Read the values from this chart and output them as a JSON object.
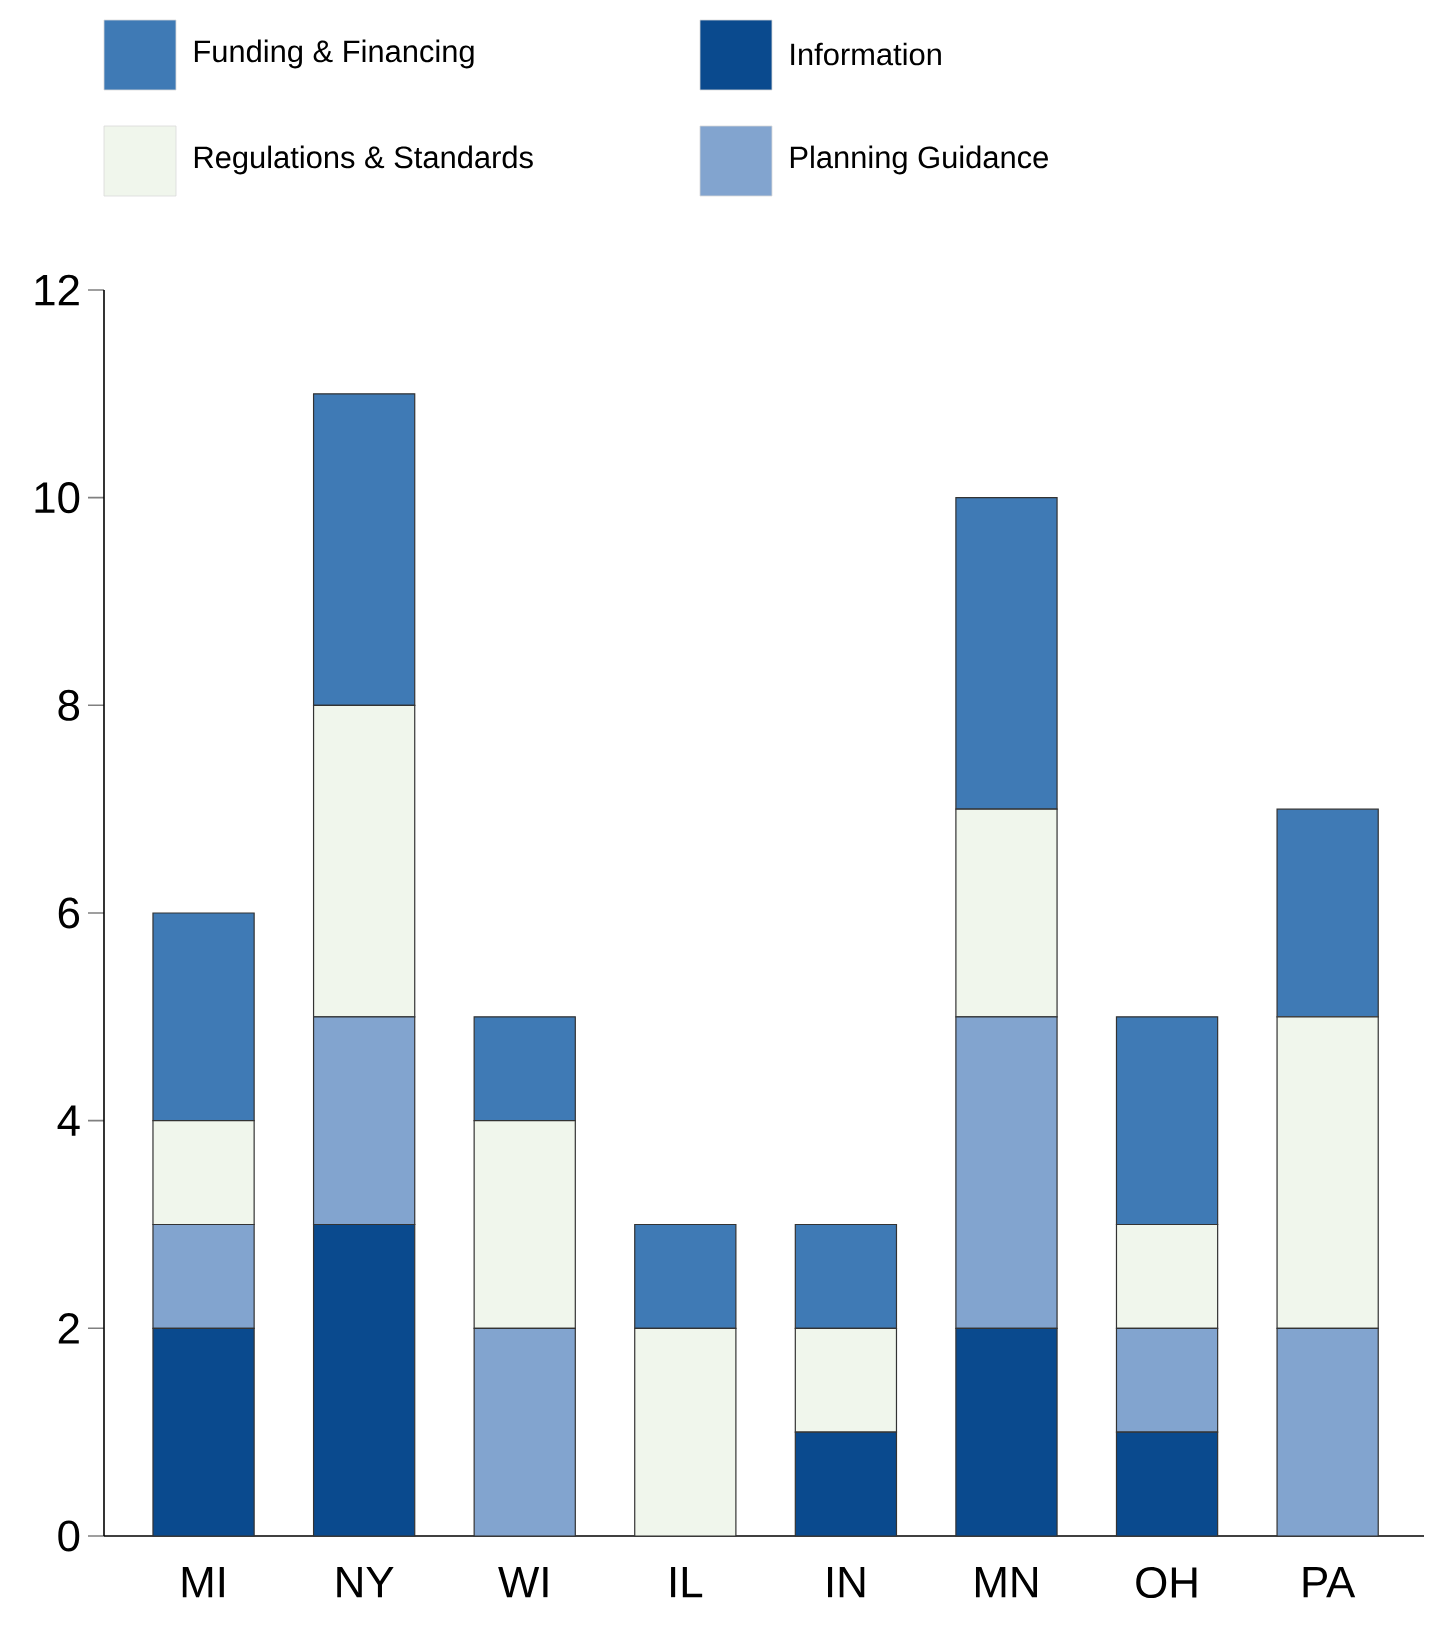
{
  "chart_data": {
    "type": "bar",
    "stacked": true,
    "categories": [
      "MI",
      "NY",
      "WI",
      "IL",
      "IN",
      "MN",
      "OH",
      "PA"
    ],
    "series": [
      {
        "name": "Information",
        "color": "#0a4a8e",
        "values": [
          2,
          3,
          0,
          0,
          1,
          2,
          1,
          0
        ]
      },
      {
        "name": "Planning Guidance",
        "color": "#82a4cf",
        "values": [
          1,
          2,
          2,
          0,
          0,
          3,
          1,
          2
        ]
      },
      {
        "name": "Regulations & Standards",
        "color": "#f0f6ec",
        "values": [
          1,
          3,
          2,
          2,
          1,
          2,
          1,
          3
        ]
      },
      {
        "name": "Funding & Financing",
        "color": "#3f7ab5",
        "values": [
          2,
          3,
          1,
          1,
          1,
          3,
          2,
          2
        ]
      }
    ],
    "ylim": [
      0,
      12
    ],
    "yticks": [
      0,
      2,
      4,
      6,
      8,
      10,
      12
    ],
    "grid": false,
    "legend": "top"
  }
}
